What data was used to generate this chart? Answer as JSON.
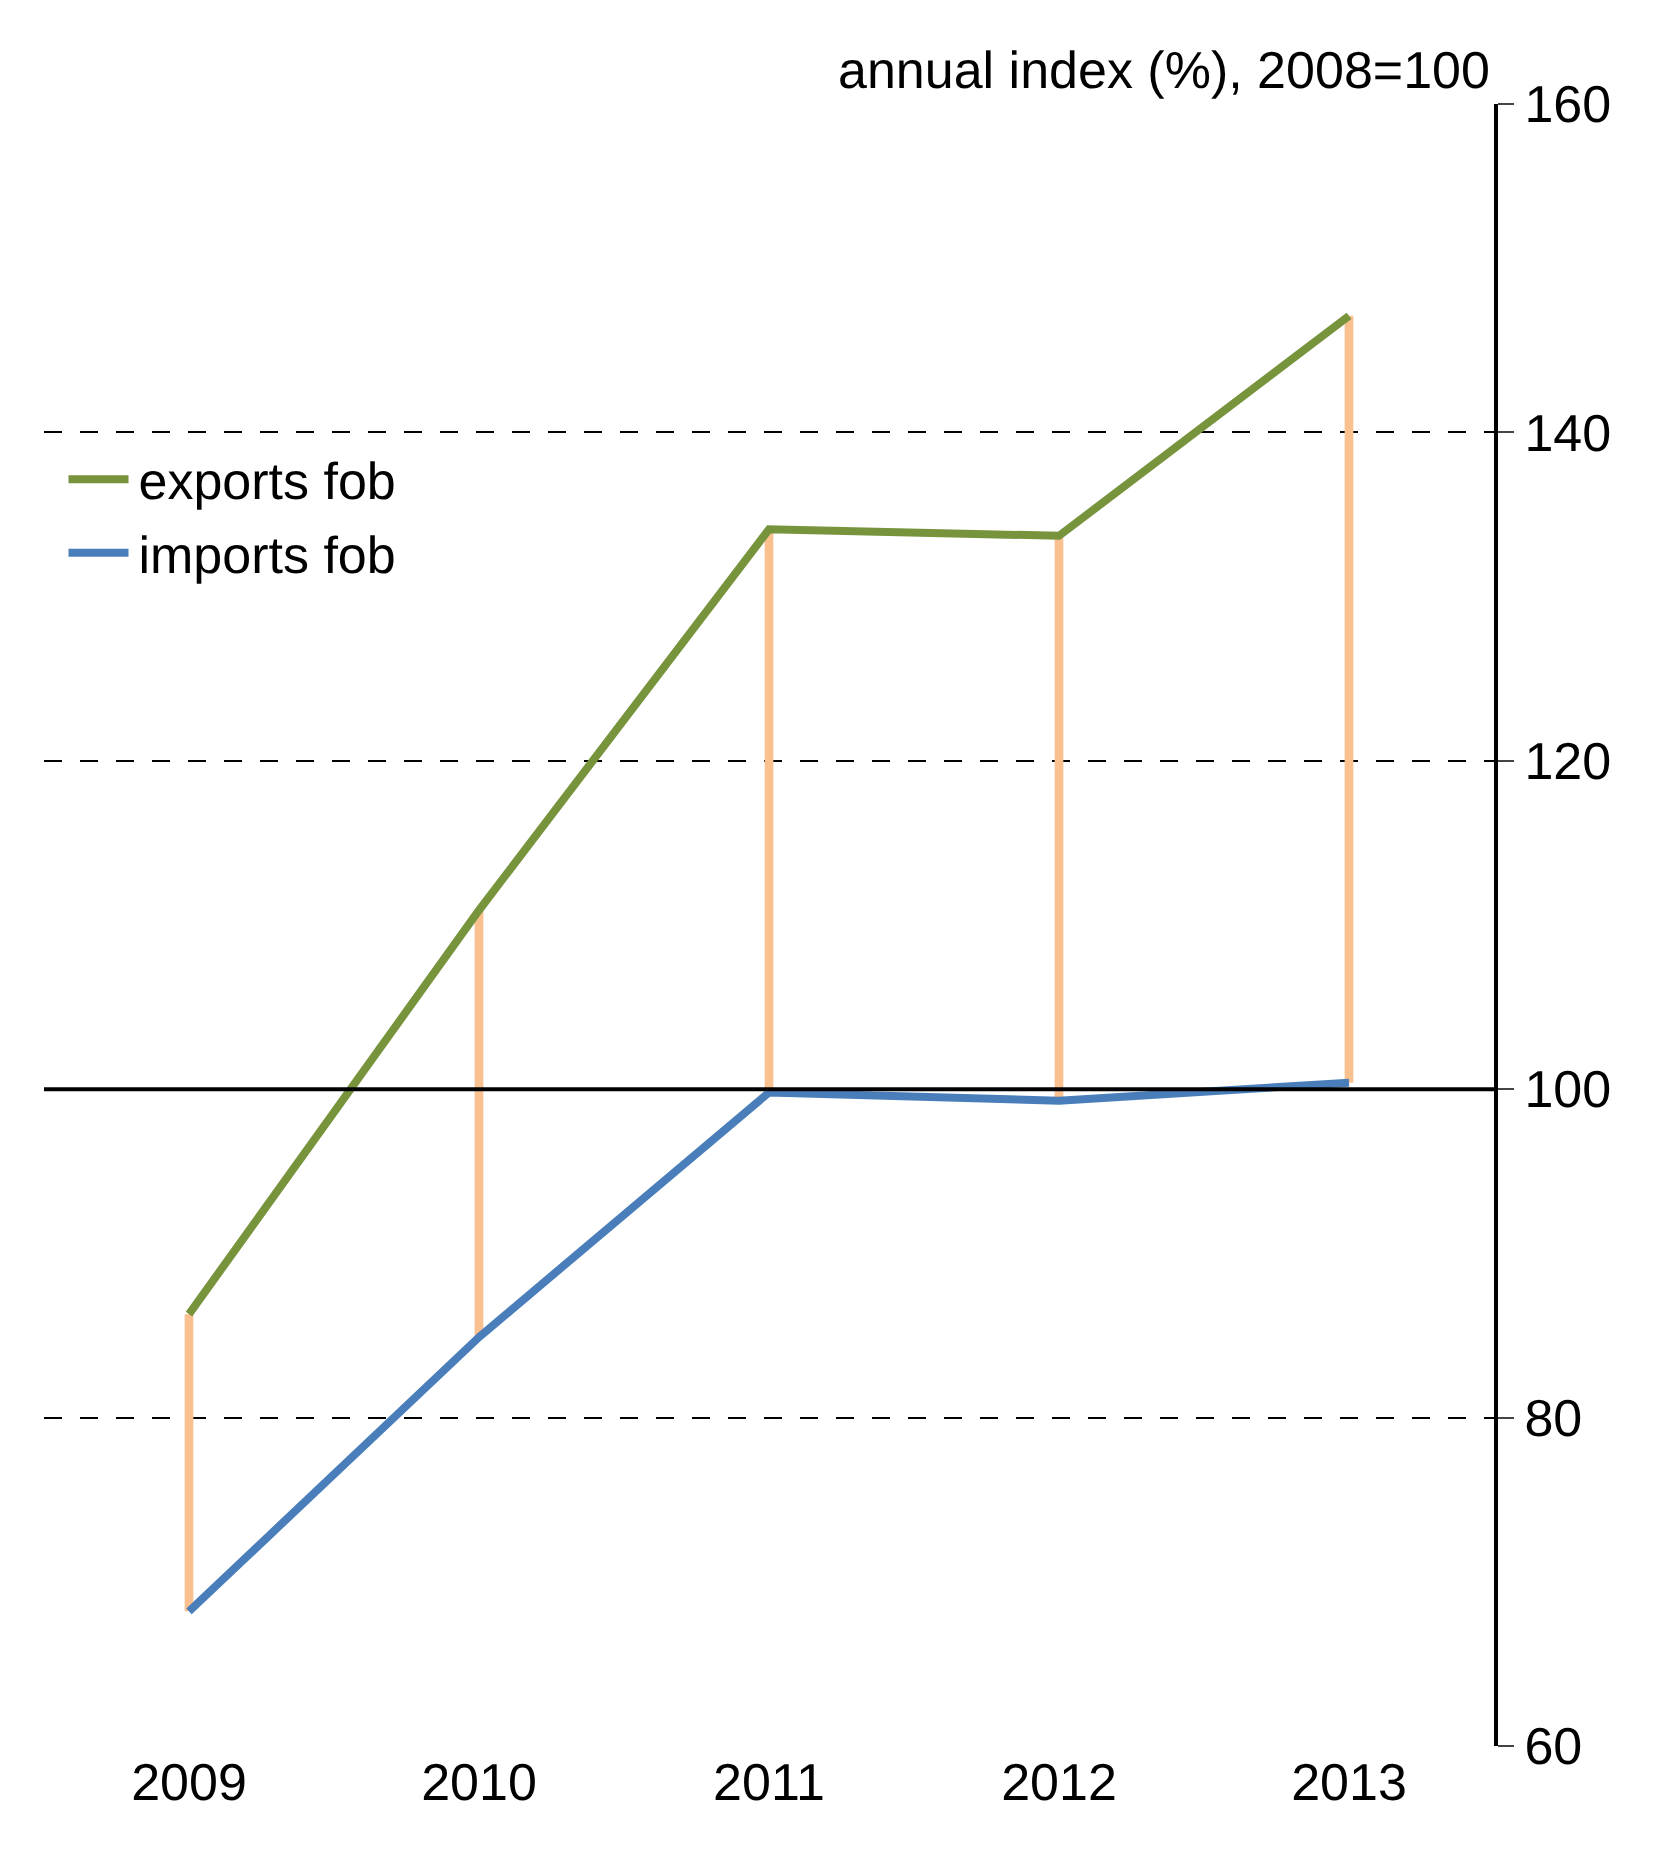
{
  "chart_data": {
    "type": "line",
    "ylabel": "annual index (%), 2008=100",
    "categories": [
      "2009",
      "2010",
      "2011",
      "2012",
      "2013"
    ],
    "series": [
      {
        "name": "exports fob",
        "color": "#77933c",
        "values": [
          86.3,
          110.9,
          134.1,
          133.7,
          147.1
        ]
      },
      {
        "name": "imports fob",
        "color": "#4a7ebb",
        "values": [
          68.2,
          84.9,
          99.8,
          99.3,
          100.4
        ]
      },
      {
        "type": "bar",
        "color": "#fac090",
        "base": [
          68.2,
          84.9,
          99.8,
          99.3,
          100.4
        ],
        "values": [
          18.1,
          26.0,
          34.3,
          34.4,
          46.7
        ]
      }
    ],
    "ylim": [
      60,
      160
    ],
    "yticks": [
      60,
      80,
      100,
      120,
      140,
      160
    ],
    "grid": "y",
    "legend": "top left",
    "marker": "none",
    "line_style": "solid",
    "ref_lines": [
      {
        "axis": "y",
        "value": 100,
        "color": "#000000"
      }
    ]
  }
}
